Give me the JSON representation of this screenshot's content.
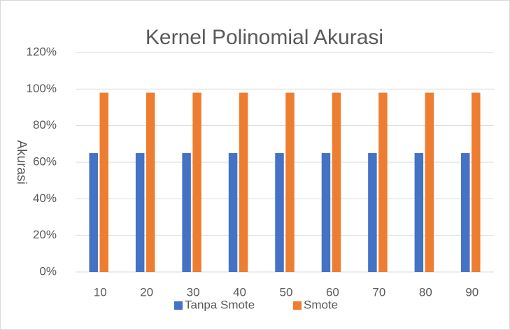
{
  "chart_data": {
    "type": "bar",
    "title": "Kernel Polinomial Akurasi",
    "y_label": "Akurasi",
    "categories": [
      "10",
      "20",
      "30",
      "40",
      "50",
      "60",
      "70",
      "80",
      "90"
    ],
    "series": [
      {
        "name": "Tanpa Smote",
        "color": "#4472c4",
        "values": [
          65,
          65,
          65,
          65,
          65,
          65,
          65,
          65,
          65
        ]
      },
      {
        "name": "Smote",
        "color": "#ed7d31",
        "values": [
          98,
          98,
          98,
          98,
          98,
          98,
          98,
          98,
          98
        ]
      }
    ],
    "ylim": [
      0,
      120
    ],
    "yticks": [
      {
        "value": 0,
        "label": "0%"
      },
      {
        "value": 20,
        "label": "20%"
      },
      {
        "value": 40,
        "label": "40%"
      },
      {
        "value": 60,
        "label": "60%"
      },
      {
        "value": 80,
        "label": "80%"
      },
      {
        "value": 100,
        "label": "100%"
      },
      {
        "value": 120,
        "label": "120%"
      }
    ],
    "grid": true,
    "legend": "bottom"
  }
}
